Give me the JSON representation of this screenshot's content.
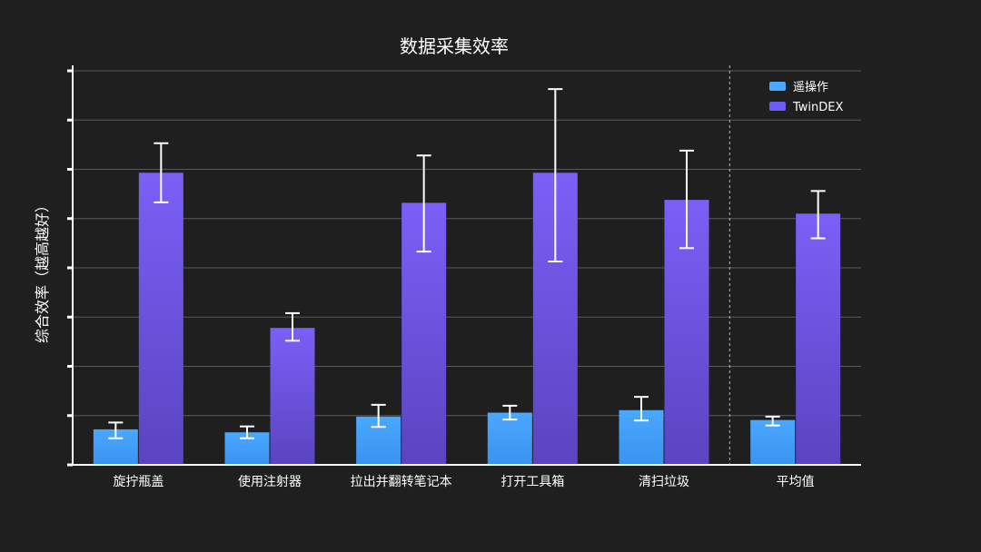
{
  "chart_data": {
    "type": "bar",
    "title": "数据采集效率",
    "ylabel": "综合效率（越高越好）",
    "xlabel": "",
    "ylim": [
      0,
      8
    ],
    "y_ticks": [
      0,
      1,
      2,
      3,
      4,
      5,
      6,
      7,
      8
    ],
    "tick_labels_visible": false,
    "grid": "horizontal",
    "legend_position": "top-right",
    "categories": [
      "旋拧瓶盖",
      "使用注射器",
      "拉出并翻转笔记本",
      "打开工具箱",
      "清扫垃圾",
      "平均值"
    ],
    "separator_before_category": "平均值",
    "series": [
      {
        "name": "遥操作",
        "color": "#4aa8ff",
        "values": [
          0.72,
          0.66,
          0.98,
          1.06,
          1.11,
          0.91
        ],
        "error_low": [
          0.54,
          0.54,
          0.77,
          0.92,
          0.9,
          0.8
        ],
        "error_high": [
          0.86,
          0.78,
          1.22,
          1.2,
          1.38,
          0.98
        ]
      },
      {
        "name": "TwinDEX",
        "color": "#6b5cf5",
        "values": [
          5.93,
          2.78,
          5.32,
          5.93,
          5.38,
          5.1
        ],
        "error_low": [
          5.33,
          2.52,
          4.33,
          4.13,
          4.4,
          4.6
        ],
        "error_high": [
          6.53,
          3.08,
          6.28,
          7.63,
          6.38,
          5.56
        ]
      }
    ]
  }
}
